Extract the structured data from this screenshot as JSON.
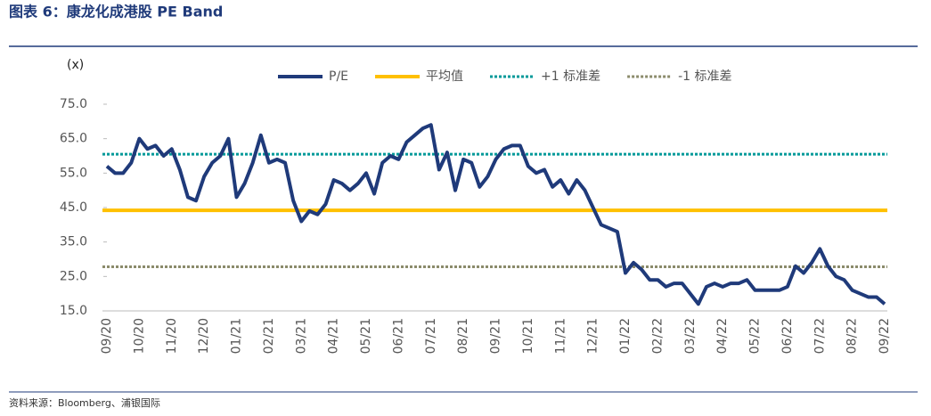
{
  "title": "图表 6：康龙化成港股 PE Band",
  "source": "资料来源：Bloomberg、浦银国际",
  "chart_data": {
    "type": "line",
    "y_label": "(x)",
    "categories": [
      "09/20",
      null,
      null,
      null,
      "10/20",
      null,
      null,
      null,
      "11/20",
      null,
      null,
      null,
      "12/20",
      null,
      null,
      null,
      "01/21",
      null,
      null,
      null,
      "02/21",
      null,
      null,
      null,
      "03/21",
      null,
      null,
      null,
      "04/21",
      null,
      null,
      null,
      "05/21",
      null,
      null,
      null,
      "06/21",
      null,
      null,
      null,
      "07/21",
      null,
      null,
      null,
      "08/21",
      null,
      null,
      null,
      "09/21",
      null,
      null,
      null,
      "10/21",
      null,
      null,
      null,
      "11/21",
      null,
      null,
      null,
      "12/21",
      null,
      null,
      null,
      "01/22",
      null,
      null,
      null,
      "02/22",
      null,
      null,
      null,
      "03/22",
      null,
      null,
      null,
      "04/22",
      null,
      null,
      null,
      "05/22",
      null,
      null,
      null,
      "06/22",
      null,
      null,
      null,
      "07/22",
      null,
      null,
      null,
      "08/22",
      null,
      null,
      null,
      "09/22"
    ],
    "series": [
      {
        "name": "P/E",
        "color": "#1f3a7a",
        "values": [
          57,
          55,
          55,
          58,
          65,
          62,
          63,
          60,
          62,
          56,
          48,
          47,
          54,
          58,
          60,
          65,
          48,
          52,
          58,
          66,
          58,
          59,
          58,
          47,
          41,
          44,
          43,
          46,
          53,
          52,
          50,
          52,
          55,
          49,
          58,
          60,
          59,
          64,
          66,
          68,
          69,
          56,
          61,
          50,
          59,
          58,
          51,
          54,
          59,
          62,
          63,
          63,
          57,
          55,
          56,
          51,
          53,
          49,
          53,
          50,
          45,
          40,
          39,
          38,
          26,
          29,
          27,
          24,
          24,
          22,
          23,
          23,
          20,
          17,
          22,
          23,
          22,
          23,
          23,
          24,
          21,
          21,
          21,
          21,
          22,
          28,
          26,
          29,
          33,
          28,
          25,
          24,
          21,
          20,
          19,
          19,
          17
        ]
      }
    ],
    "bands": [
      {
        "name": "平均值",
        "color": "#ffc000",
        "value": 44.2,
        "style": "solid"
      },
      {
        "name": "+1 标准差",
        "color": "#009999",
        "value": 60.5,
        "style": "dotted"
      },
      {
        "name": "-1 标准差",
        "color": "#8b8b6b",
        "value": 27.8,
        "style": "dotted"
      }
    ],
    "ylim": [
      15,
      75
    ],
    "yticks": [
      {
        "value": 15,
        "label": "15.0"
      },
      {
        "value": 25,
        "label": "25.0"
      },
      {
        "value": 35,
        "label": "35.0"
      },
      {
        "value": 45,
        "label": "45.0"
      },
      {
        "value": 55,
        "label": "55.0"
      },
      {
        "value": 65,
        "label": "65.0"
      },
      {
        "value": 75,
        "label": "75.0"
      }
    ],
    "grid": false
  }
}
